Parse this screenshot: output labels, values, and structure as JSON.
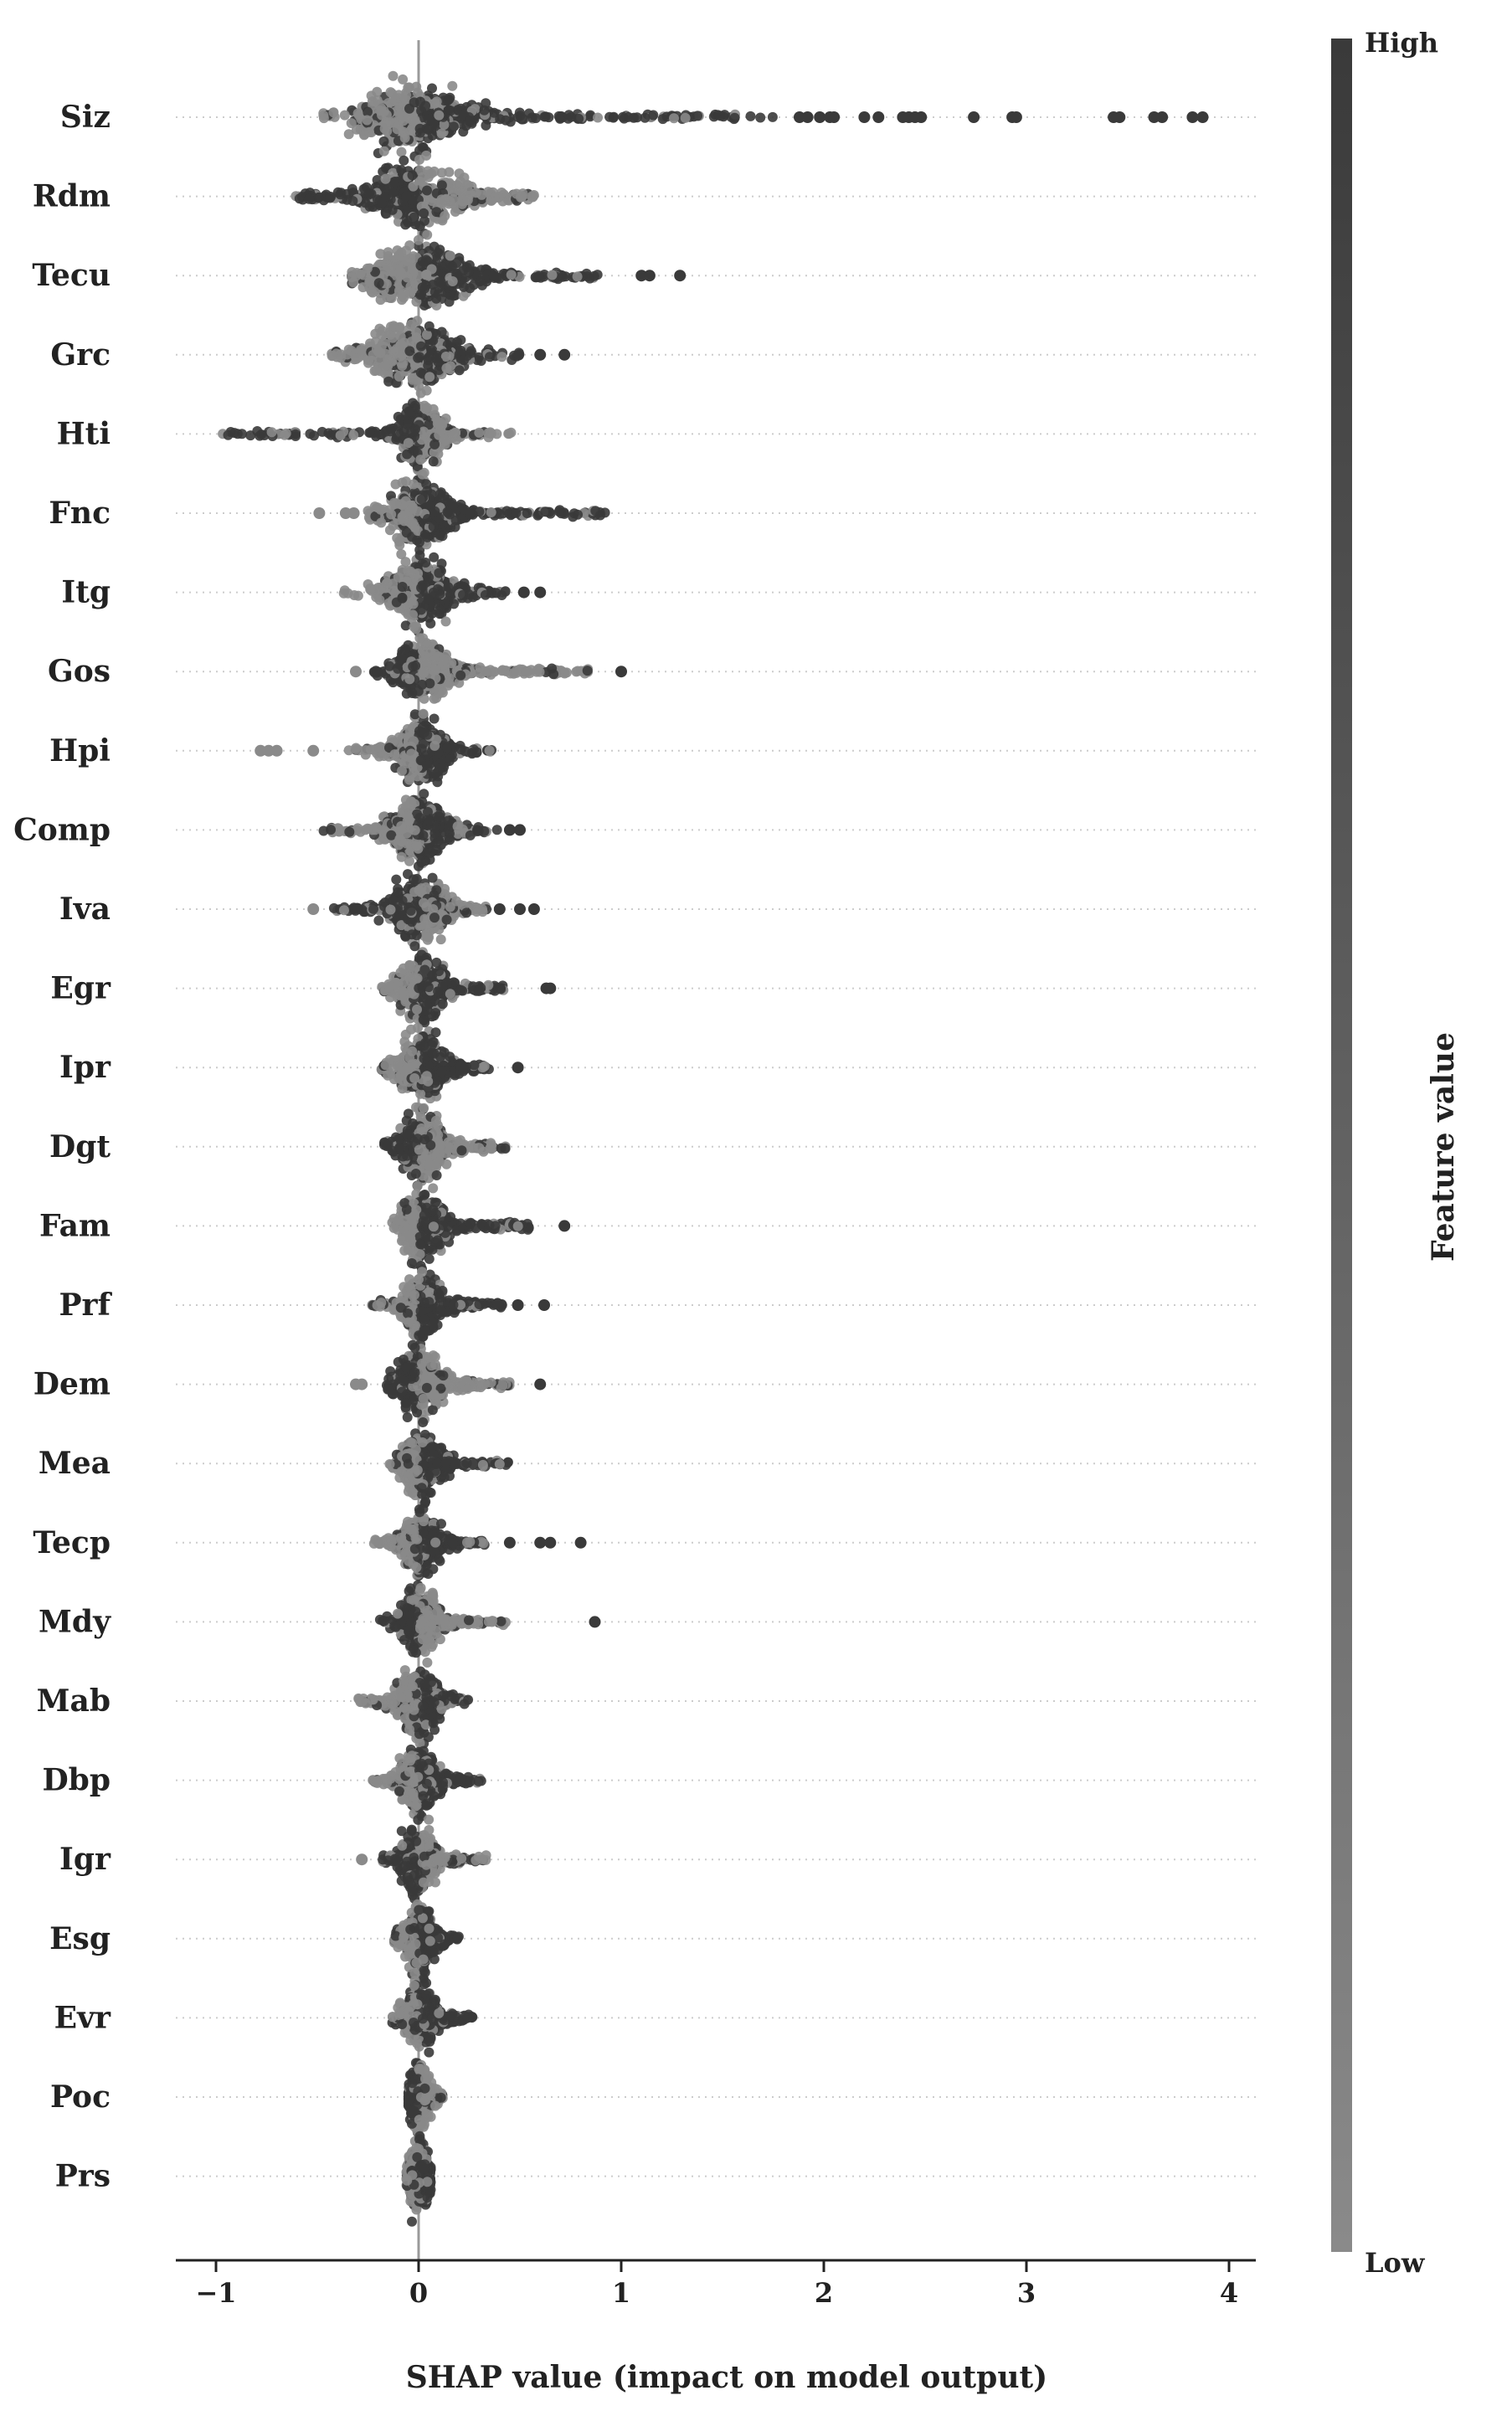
{
  "chart_data": {
    "type": "scatter",
    "subtype": "shap-beeswarm",
    "xlabel": "SHAP value (impact on model output)",
    "xlim": [
      -1.22,
      4.12
    ],
    "xticks": [
      -1,
      0,
      1,
      2,
      3,
      4
    ],
    "xtick_labels": [
      "−1",
      "0",
      "1",
      "2",
      "3",
      "4"
    ],
    "colorbar": {
      "title": "Feature value",
      "high_label": "High",
      "low_label": "Low"
    },
    "colors": {
      "high": "#3a3a3a",
      "low": "#8a8a8a",
      "zero_line": "#9a9a9a",
      "row_guides": "#cccccc",
      "axis": "#222222"
    },
    "features": [
      {
        "name": "Siz",
        "min": -0.47,
        "max": 3.87,
        "core": [
          -0.22,
          0.12
        ],
        "width": [
          -0.47,
          1.75
        ],
        "outliers": [
          1.88,
          1.92,
          1.98,
          2.03,
          2.05,
          2.2,
          2.27,
          2.39,
          2.42,
          2.45,
          2.48,
          2.74,
          2.93,
          2.95,
          3.43,
          3.46,
          3.63,
          3.67,
          3.82,
          3.87
        ]
      },
      {
        "name": "Rdm",
        "min": -0.63,
        "max": 0.58,
        "core": [
          -0.15,
          0.15
        ],
        "width": [
          -0.63,
          0.58
        ],
        "outliers": []
      },
      {
        "name": "Tecu",
        "min": -0.33,
        "max": 1.29,
        "core": [
          -0.15,
          0.15
        ],
        "width": [
          -0.33,
          0.9
        ],
        "outliers": [
          1.1,
          1.14,
          1.29
        ]
      },
      {
        "name": "Grc",
        "min": -0.43,
        "max": 0.72,
        "core": [
          -0.15,
          0.1
        ],
        "width": [
          -0.43,
          0.5
        ],
        "outliers": [
          0.6,
          0.72
        ]
      },
      {
        "name": "Hti",
        "min": -0.98,
        "max": 0.5,
        "core": [
          -0.05,
          0.08
        ],
        "width": [
          -0.98,
          0.5
        ],
        "outliers": []
      },
      {
        "name": "Fnc",
        "min": -0.49,
        "max": 0.94,
        "core": [
          -0.08,
          0.1
        ],
        "width": [
          -0.25,
          0.94
        ],
        "outliers": [
          -0.49,
          -0.36,
          -0.32
        ]
      },
      {
        "name": "Itg",
        "min": -0.37,
        "max": 0.6,
        "core": [
          -0.08,
          0.1
        ],
        "width": [
          -0.37,
          0.45
        ],
        "outliers": [
          0.52,
          0.6
        ]
      },
      {
        "name": "Gos",
        "min": -0.31,
        "max": 1.0,
        "core": [
          -0.06,
          0.1
        ],
        "width": [
          -0.22,
          0.85
        ],
        "outliers": [
          -0.31,
          1.0
        ]
      },
      {
        "name": "Hpi",
        "min": -0.78,
        "max": 0.36,
        "core": [
          -0.05,
          0.08
        ],
        "width": [
          -0.35,
          0.36
        ],
        "outliers": [
          -0.78,
          -0.74,
          -0.7,
          -0.52
        ]
      },
      {
        "name": "Comp",
        "min": -0.47,
        "max": 0.5,
        "core": [
          -0.08,
          0.08
        ],
        "width": [
          -0.47,
          0.4
        ],
        "outliers": [
          0.45,
          0.5
        ]
      },
      {
        "name": "Iva",
        "min": -0.52,
        "max": 0.57,
        "core": [
          -0.08,
          0.08
        ],
        "width": [
          -0.42,
          0.35
        ],
        "outliers": [
          -0.52,
          0.4,
          0.5,
          0.57
        ]
      },
      {
        "name": "Egr",
        "min": -0.2,
        "max": 0.65,
        "core": [
          -0.05,
          0.08
        ],
        "width": [
          -0.2,
          0.42
        ],
        "outliers": [
          0.63,
          0.65
        ]
      },
      {
        "name": "Ipr",
        "min": -0.2,
        "max": 0.49,
        "core": [
          -0.05,
          0.08
        ],
        "width": [
          -0.2,
          0.35
        ],
        "outliers": [
          0.49
        ]
      },
      {
        "name": "Dgt",
        "min": -0.17,
        "max": 0.43,
        "core": [
          -0.05,
          0.08
        ],
        "width": [
          -0.17,
          0.43
        ],
        "outliers": []
      },
      {
        "name": "Fam",
        "min": -0.13,
        "max": 0.72,
        "core": [
          -0.04,
          0.08
        ],
        "width": [
          -0.13,
          0.55
        ],
        "outliers": [
          0.72
        ]
      },
      {
        "name": "Prf",
        "min": -0.23,
        "max": 0.62,
        "core": [
          -0.05,
          0.06
        ],
        "width": [
          -0.23,
          0.42
        ],
        "outliers": [
          0.49,
          0.62
        ]
      },
      {
        "name": "Dem",
        "min": -0.31,
        "max": 0.6,
        "core": [
          -0.06,
          0.08
        ],
        "width": [
          -0.17,
          0.45
        ],
        "outliers": [
          -0.31,
          -0.28,
          0.6
        ]
      },
      {
        "name": "Mea",
        "min": -0.15,
        "max": 0.45,
        "core": [
          -0.04,
          0.06
        ],
        "width": [
          -0.15,
          0.45
        ],
        "outliers": []
      },
      {
        "name": "Tecp",
        "min": -0.22,
        "max": 0.8,
        "core": [
          -0.04,
          0.06
        ],
        "width": [
          -0.22,
          0.35
        ],
        "outliers": [
          0.45,
          0.6,
          0.65,
          0.8
        ]
      },
      {
        "name": "Mdy",
        "min": -0.2,
        "max": 0.87,
        "core": [
          -0.04,
          0.06
        ],
        "width": [
          -0.2,
          0.45
        ],
        "outliers": [
          0.87
        ]
      },
      {
        "name": "Mab",
        "min": -0.3,
        "max": 0.25,
        "core": [
          -0.06,
          0.06
        ],
        "width": [
          -0.3,
          0.25
        ],
        "outliers": []
      },
      {
        "name": "Dbp",
        "min": -0.24,
        "max": 0.32,
        "core": [
          -0.05,
          0.05
        ],
        "width": [
          -0.24,
          0.32
        ],
        "outliers": []
      },
      {
        "name": "Igr",
        "min": -0.28,
        "max": 0.34,
        "core": [
          -0.05,
          0.05
        ],
        "width": [
          -0.18,
          0.34
        ],
        "outliers": [
          -0.28
        ]
      },
      {
        "name": "Esg",
        "min": -0.12,
        "max": 0.2,
        "core": [
          -0.04,
          0.05
        ],
        "width": [
          -0.12,
          0.2
        ],
        "outliers": []
      },
      {
        "name": "Evr",
        "min": -0.13,
        "max": 0.27,
        "core": [
          -0.04,
          0.05
        ],
        "width": [
          -0.13,
          0.27
        ],
        "outliers": []
      },
      {
        "name": "Poc",
        "min": -0.05,
        "max": 0.12,
        "core": [
          -0.03,
          0.03
        ],
        "width": [
          -0.05,
          0.12
        ],
        "outliers": []
      },
      {
        "name": "Prs",
        "min": -0.06,
        "max": 0.06,
        "core": [
          -0.03,
          0.03
        ],
        "width": [
          -0.06,
          0.06
        ],
        "outliers": []
      }
    ]
  }
}
